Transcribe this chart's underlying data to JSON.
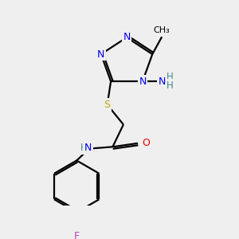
{
  "bg_color": "#efefef",
  "atom_colors": {
    "C": "#000000",
    "N": "#0000ee",
    "O": "#ee0000",
    "S": "#bbaa00",
    "F": "#bb44bb",
    "H": "#448888"
  },
  "bond_color": "#000000",
  "bond_width": 1.6,
  "figsize": [
    3.0,
    3.0
  ],
  "dpi": 100
}
